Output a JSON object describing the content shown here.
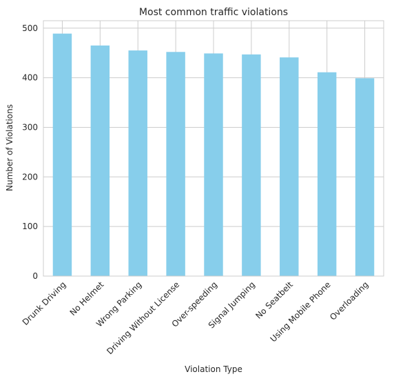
{
  "chart_data": {
    "type": "bar",
    "title": "Most common traffic violations",
    "xlabel": "Violation Type",
    "ylabel": "Number of Violations",
    "categories": [
      "Drunk Driving",
      "No Helmet",
      "Wrong Parking",
      "Driving Without License",
      "Over-speeding",
      "Signal Jumping",
      "No Seatbelt",
      "Using Mobile Phone",
      "Overloading"
    ],
    "values": [
      489,
      465,
      455,
      452,
      449,
      447,
      441,
      411,
      399
    ],
    "ylim": [
      0,
      515
    ],
    "yticks": [
      0,
      100,
      200,
      300,
      400,
      500
    ],
    "grid": true,
    "bar_color": "#87ceeb",
    "grid_color": "#cccccc",
    "axes_edge_color": "#cccccc"
  }
}
